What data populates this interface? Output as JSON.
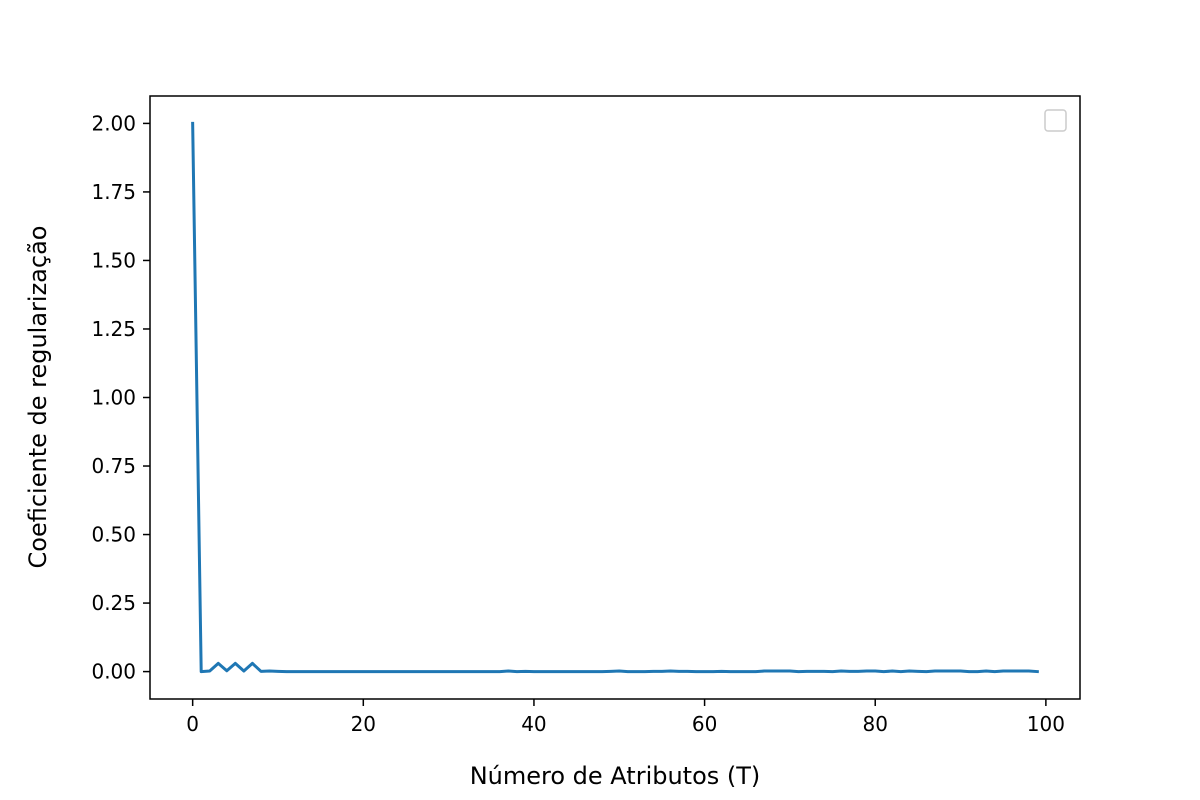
{
  "chart_data": {
    "type": "line",
    "title": "",
    "xlabel": "Número de Atributos (T)",
    "ylabel": "Coeficiente de regularização",
    "xlim": [
      -5,
      104
    ],
    "ylim": [
      -0.1,
      2.1
    ],
    "xticks": [
      0,
      20,
      40,
      60,
      80,
      100
    ],
    "xtick_labels": [
      "0",
      "20",
      "40",
      "60",
      "80",
      "100"
    ],
    "yticks": [
      0.0,
      0.25,
      0.5,
      0.75,
      1.0,
      1.25,
      1.5,
      1.75,
      2.0
    ],
    "ytick_labels": [
      "0.00",
      "0.25",
      "0.50",
      "0.75",
      "1.00",
      "1.25",
      "1.50",
      "1.75",
      "2.00"
    ],
    "grid": false,
    "legend": "top-right, empty",
    "colors": {
      "line": "#1f77b4",
      "axes": "#000000",
      "legend_border": "#cccccc"
    },
    "series": [
      {
        "x": [
          0,
          1,
          2,
          3,
          4,
          5,
          6,
          7,
          8,
          9,
          10,
          11,
          12,
          13,
          14,
          15,
          16,
          17,
          18,
          19,
          20,
          21,
          22,
          23,
          24,
          25,
          26,
          27,
          28,
          29,
          30,
          31,
          32,
          33,
          34,
          35,
          36,
          37,
          38,
          39,
          40,
          41,
          42,
          43,
          44,
          45,
          46,
          47,
          48,
          49,
          50,
          51,
          52,
          53,
          54,
          55,
          56,
          57,
          58,
          59,
          60,
          61,
          62,
          63,
          64,
          65,
          66,
          67,
          68,
          69,
          70,
          71,
          72,
          73,
          74,
          75,
          76,
          77,
          78,
          79,
          80,
          81,
          82,
          83,
          84,
          85,
          86,
          87,
          88,
          89,
          90,
          91,
          92,
          93,
          94,
          95,
          96,
          97,
          98,
          99
        ],
        "values": [
          2.0,
          0.0,
          0.002,
          0.03,
          0.003,
          0.03,
          0.002,
          0.03,
          0.001,
          0.002,
          0.001,
          0.0,
          0.0,
          0.0,
          0.0,
          0.0,
          0.0,
          0.0,
          0.0,
          0.0,
          0.0,
          0.0,
          0.0,
          0.0,
          0.0,
          0.0,
          0.0,
          0.0,
          0.0,
          0.0,
          0.0,
          0.0,
          0.0,
          0.0,
          0.0,
          0.0,
          0.0,
          0.002,
          0.0,
          0.001,
          0.0,
          0.0,
          0.0,
          0.0,
          0.0,
          0.0,
          0.0,
          0.0,
          0.0,
          0.001,
          0.002,
          0.0,
          0.0,
          0.0,
          0.001,
          0.001,
          0.002,
          0.001,
          0.001,
          0.0,
          0.0,
          0.0,
          0.001,
          0.0,
          0.0,
          0.0,
          0.0,
          0.002,
          0.002,
          0.002,
          0.002,
          0.0,
          0.001,
          0.001,
          0.001,
          0.0,
          0.002,
          0.001,
          0.001,
          0.002,
          0.002,
          0.0,
          0.002,
          0.0,
          0.002,
          0.001,
          0.0,
          0.002,
          0.002,
          0.002,
          0.002,
          0.0,
          0.0,
          0.002,
          0.0,
          0.002,
          0.002,
          0.002,
          0.002,
          0.0
        ]
      }
    ]
  }
}
